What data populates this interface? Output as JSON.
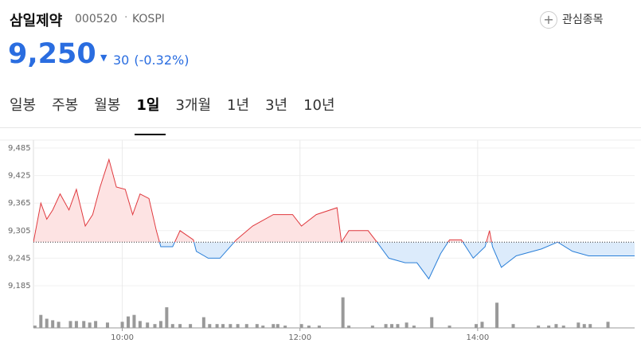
{
  "header": {
    "name": "삼일제약",
    "code": "000520",
    "market": "KOSPI",
    "favorite": "관심종목",
    "price": "9,250",
    "change": "30",
    "change_pct": "(-0.32%)",
    "tabs": [
      "일봉",
      "주봉",
      "월봉",
      "1일",
      "3개월",
      "1년",
      "3년",
      "10년"
    ]
  },
  "chart_data": [
    {
      "type": "line",
      "x": [
        "09:00",
        "09:05",
        "09:09",
        "09:13",
        "09:18",
        "09:24",
        "09:29",
        "09:35",
        "09:40",
        "09:45",
        "09:51",
        "09:56",
        "10:02",
        "10:07",
        "10:12",
        "10:18",
        "10:23",
        "10:26",
        "10:34",
        "10:39",
        "10:48",
        "10:50",
        "10:58",
        "11:06",
        "11:17",
        "11:28",
        "11:42",
        "11:55",
        "12:01",
        "12:11",
        "12:25",
        "12:28",
        "12:33",
        "12:46",
        "12:52",
        "13:00",
        "13:11",
        "13:19",
        "13:27",
        "13:35",
        "13:41",
        "13:49",
        "13:57",
        "14:05",
        "14:08",
        "14:10",
        "14:16",
        "14:26",
        "14:43",
        "14:54",
        "15:04",
        "15:15",
        "15:26",
        "15:46"
      ],
      "values": [
        9280,
        9365,
        9330,
        9350,
        9385,
        9350,
        9395,
        9315,
        9340,
        9400,
        9460,
        9400,
        9395,
        9340,
        9385,
        9375,
        9305,
        9270,
        9270,
        9305,
        9285,
        9260,
        9245,
        9245,
        9285,
        9315,
        9340,
        9340,
        9315,
        9340,
        9355,
        9280,
        9305,
        9305,
        9280,
        9245,
        9235,
        9235,
        9200,
        9255,
        9285,
        9285,
        9245,
        9270,
        9305,
        9270,
        9225,
        9250,
        9265,
        9280,
        9260,
        9250,
        9250,
        9250
      ],
      "up_color": "#e0393e",
      "down_color": "#2a7fd8",
      "up_fill": "#fde3e3",
      "down_fill": "#dcebfb",
      "reference_line": 9280,
      "xlim": [
        "09:00",
        "15:46"
      ],
      "xticks": [
        "10:00",
        "12:00",
        "14:00"
      ],
      "ylim": [
        9185,
        9485
      ],
      "yticks": [
        {
          "value": 9185,
          "label": "9,185"
        },
        {
          "value": 9245,
          "label": "9,245"
        },
        {
          "value": 9305,
          "label": "9,305"
        },
        {
          "value": 9365,
          "label": "9,365"
        },
        {
          "value": 9425,
          "label": "9,425"
        },
        {
          "value": 9485,
          "label": "9,485"
        }
      ],
      "grid": true
    },
    {
      "type": "bar",
      "x": [
        "09:01",
        "09:05",
        "09:09",
        "09:13",
        "09:17",
        "09:25",
        "09:29",
        "09:34",
        "09:38",
        "09:42",
        "09:50",
        "10:00",
        "10:04",
        "10:08",
        "10:12",
        "10:17",
        "10:22",
        "10:26",
        "10:30",
        "10:34",
        "10:39",
        "10:46",
        "10:55",
        "10:59",
        "11:04",
        "11:08",
        "11:13",
        "11:18",
        "11:24",
        "11:31",
        "11:35",
        "11:42",
        "11:45",
        "11:50",
        "12:01",
        "12:06",
        "12:13",
        "12:29",
        "12:33",
        "12:49",
        "12:58",
        "13:02",
        "13:06",
        "13:12",
        "13:17",
        "13:29",
        "13:41",
        "13:59",
        "14:03",
        "14:13",
        "14:24",
        "14:41",
        "14:48",
        "14:53",
        "14:58",
        "15:08",
        "15:12",
        "15:16",
        "15:28"
      ],
      "values": [
        3,
        17,
        12,
        10,
        8,
        9,
        9,
        9,
        7,
        9,
        7,
        8,
        15,
        17,
        9,
        7,
        5,
        9,
        27,
        5,
        5,
        5,
        14,
        5,
        5,
        5,
        5,
        5,
        5,
        5,
        3,
        5,
        5,
        3,
        5,
        3,
        3,
        40,
        3,
        3,
        5,
        5,
        5,
        7,
        3,
        14,
        3,
        5,
        8,
        33,
        5,
        3,
        3,
        5,
        3,
        7,
        5,
        5,
        8
      ],
      "color": "#999999",
      "xlim": [
        "09:00",
        "15:46"
      ],
      "ylim": [
        0,
        50
      ]
    }
  ]
}
